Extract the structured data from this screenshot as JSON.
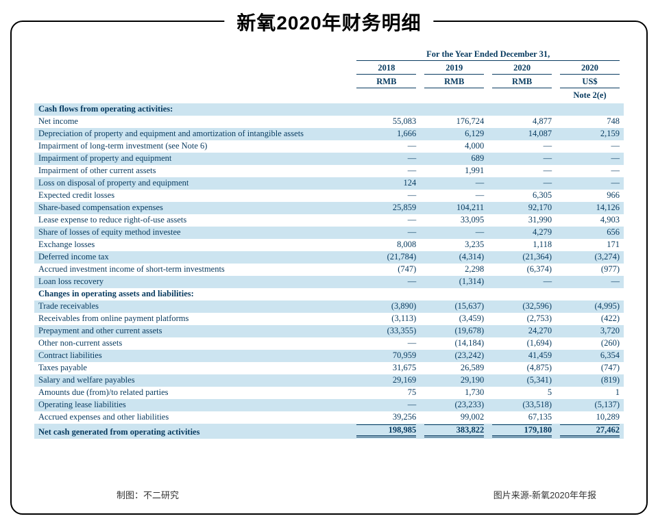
{
  "title": "新氧2020年财务明细",
  "super_header": "For the Year Ended December 31,",
  "years": [
    "2018",
    "2019",
    "2020",
    "2020"
  ],
  "currencies": [
    "RMB",
    "RMB",
    "RMB",
    "US$"
  ],
  "note": "Note 2(e)",
  "section1": "Cash flows from operating activities:",
  "rows1": [
    {
      "label": "Net income",
      "v": [
        "55,083",
        "176,724",
        "4,877",
        "748"
      ],
      "stripe": false
    },
    {
      "label": "Depreciation of property and equipment and amortization of intangible assets",
      "v": [
        "1,666",
        "6,129",
        "14,087",
        "2,159"
      ],
      "stripe": true
    },
    {
      "label": "Impairment of long-term investment (see Note 6)",
      "v": [
        "—",
        "4,000",
        "—",
        "—"
      ],
      "stripe": false
    },
    {
      "label": "Impairment of property and equipment",
      "v": [
        "—",
        "689",
        "—",
        "—"
      ],
      "stripe": true
    },
    {
      "label": "Impairment of other current assets",
      "v": [
        "—",
        "1,991",
        "—",
        "—"
      ],
      "stripe": false
    },
    {
      "label": "Loss on disposal of property and equipment",
      "v": [
        "124",
        "—",
        "—",
        "—"
      ],
      "stripe": true
    },
    {
      "label": "Expected credit losses",
      "v": [
        "—",
        "—",
        "6,305",
        "966"
      ],
      "stripe": false
    },
    {
      "label": "Share-based compensation expenses",
      "v": [
        "25,859",
        "104,211",
        "92,170",
        "14,126"
      ],
      "stripe": true
    },
    {
      "label": "Lease expense to reduce right-of-use assets",
      "v": [
        "—",
        "33,095",
        "31,990",
        "4,903"
      ],
      "stripe": false
    },
    {
      "label": "Share of losses of equity method investee",
      "v": [
        "—",
        "—",
        "4,279",
        "656"
      ],
      "stripe": true
    },
    {
      "label": "Exchange losses",
      "v": [
        "8,008",
        "3,235",
        "1,118",
        "171"
      ],
      "stripe": false
    },
    {
      "label": "Deferred income tax",
      "v": [
        "(21,784)",
        "(4,314)",
        "(21,364)",
        "(3,274)"
      ],
      "stripe": true
    },
    {
      "label": "Accrued investment income of short-term investments",
      "v": [
        "(747)",
        "2,298",
        "(6,374)",
        "(977)"
      ],
      "stripe": false
    },
    {
      "label": "Loan loss recovery",
      "v": [
        "—",
        "(1,314)",
        "—",
        "—"
      ],
      "stripe": true
    }
  ],
  "section2": "Changes in operating assets and liabilities:",
  "rows2": [
    {
      "label": "Trade receivables",
      "v": [
        "(3,890)",
        "(15,637)",
        "(32,596)",
        "(4,995)"
      ],
      "stripe": true
    },
    {
      "label": "Receivables from online payment platforms",
      "v": [
        "(3,113)",
        "(3,459)",
        "(2,753)",
        "(422)"
      ],
      "stripe": false
    },
    {
      "label": "Prepayment and other current assets",
      "v": [
        "(33,355)",
        "(19,678)",
        "24,270",
        "3,720"
      ],
      "stripe": true
    },
    {
      "label": "Other non-current assets",
      "v": [
        "—",
        "(14,184)",
        "(1,694)",
        "(260)"
      ],
      "stripe": false
    },
    {
      "label": "Contract liabilities",
      "v": [
        "70,959",
        "(23,242)",
        "41,459",
        "6,354"
      ],
      "stripe": true
    },
    {
      "label": "Taxes payable",
      "v": [
        "31,675",
        "26,589",
        "(4,875)",
        "(747)"
      ],
      "stripe": false
    },
    {
      "label": "Salary and welfare payables",
      "v": [
        "29,169",
        "29,190",
        "(5,341)",
        "(819)"
      ],
      "stripe": true
    },
    {
      "label": "Amounts due (from)/to related parties",
      "v": [
        "75",
        "1,730",
        "5",
        "1"
      ],
      "stripe": false
    },
    {
      "label": "Operating lease liabilities",
      "v": [
        "—",
        "(23,233)",
        "(33,518)",
        "(5,137)"
      ],
      "stripe": true
    },
    {
      "label": "Accrued expenses and other liabilities",
      "v": [
        "39,256",
        "99,002",
        "67,135",
        "10,289"
      ],
      "stripe": false
    }
  ],
  "total": {
    "label": "Net cash generated from operating activities",
    "v": [
      "198,985",
      "383,822",
      "179,180",
      "27,462"
    ],
    "stripe": true
  },
  "footer_left": "制图：不二研究",
  "footer_right": "图片来源-新氧2020年年报",
  "colors": {
    "text": "#073a5f",
    "stripe": "#cce4f0",
    "background": "#ffffff"
  }
}
